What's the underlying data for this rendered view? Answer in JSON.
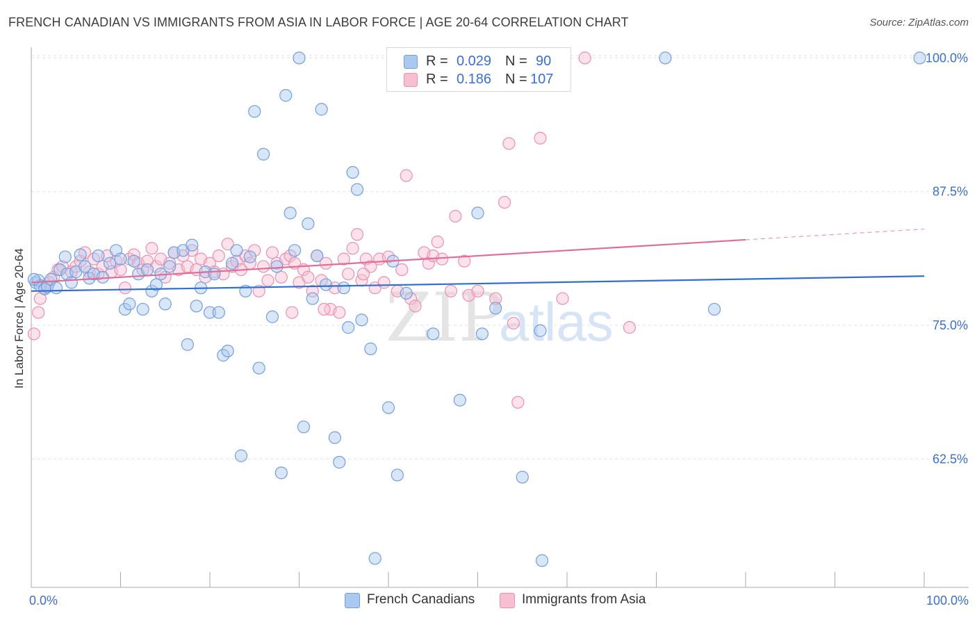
{
  "title": "FRENCH CANADIAN VS IMMIGRANTS FROM ASIA IN LABOR FORCE | AGE 20-64 CORRELATION CHART",
  "source": "Source: ZipAtlas.com",
  "watermark": {
    "zip": "ZIP",
    "atlas": "atlas"
  },
  "legend": {
    "rows": [
      {
        "r_label": "R = ",
        "r_value": "0.029",
        "n_label": "N = ",
        "n_value": "90",
        "color": "#aac8f0",
        "stroke": "#6f9fe0"
      },
      {
        "r_label": "R = ",
        "r_value": "0.186",
        "n_label": "N = ",
        "n_value": "107",
        "color": "#f8bfd2",
        "stroke": "#ec8fae"
      }
    ]
  },
  "chart_data": {
    "type": "scatter",
    "title": "FRENCH CANADIAN VS IMMIGRANTS FROM ASIA IN LABOR FORCE | AGE 20-64 CORRELATION CHART",
    "xlabel": "",
    "ylabel": "In Labor Force | Age 20-64",
    "xlim": [
      0,
      100
    ],
    "ylim": [
      50.5,
      101
    ],
    "x_tick_labels": [
      "0.0%",
      "100.0%"
    ],
    "y_ticks": [
      62.5,
      75.0,
      87.5,
      100.0
    ],
    "y_tick_labels": [
      "62.5%",
      "75.0%",
      "87.5%",
      "100.0%"
    ],
    "grid": true,
    "colors": {
      "blue": "#6f9fe0",
      "blue_fill": "#aac8f0",
      "blue_line": "#2f6fcf",
      "pink": "#ec8fae",
      "pink_fill": "#f8bfd2",
      "pink_line": "#e36c97",
      "tick_text": "#3a6fcc"
    },
    "series": [
      {
        "name": "French Canadians",
        "trend": {
          "x": [
            0,
            100
          ],
          "y": [
            78.2,
            79.6
          ]
        },
        "points": [
          [
            0.5,
            79.0
          ],
          [
            0.8,
            79.2
          ],
          [
            1.0,
            78.7
          ],
          [
            1.5,
            78.4
          ],
          [
            1.8,
            78.6
          ],
          [
            2.2,
            79.3
          ],
          [
            2.8,
            78.5
          ],
          [
            3.2,
            80.2
          ],
          [
            3.8,
            81.4
          ],
          [
            4.0,
            79.8
          ],
          [
            4.5,
            79.0
          ],
          [
            5.0,
            80.0
          ],
          [
            5.5,
            81.6
          ],
          [
            6.0,
            80.5
          ],
          [
            6.5,
            79.4
          ],
          [
            7.0,
            79.8
          ],
          [
            7.5,
            81.5
          ],
          [
            8.0,
            79.5
          ],
          [
            8.8,
            80.8
          ],
          [
            9.5,
            82.0
          ],
          [
            10.0,
            81.2
          ],
          [
            10.5,
            76.5
          ],
          [
            11.0,
            77.0
          ],
          [
            11.5,
            81.0
          ],
          [
            12.0,
            79.8
          ],
          [
            12.5,
            76.5
          ],
          [
            13.0,
            80.2
          ],
          [
            13.5,
            78.2
          ],
          [
            14.0,
            78.8
          ],
          [
            14.5,
            79.8
          ],
          [
            15.0,
            77.0
          ],
          [
            15.5,
            80.5
          ],
          [
            16.0,
            81.8
          ],
          [
            17.0,
            82.0
          ],
          [
            17.5,
            73.2
          ],
          [
            18.0,
            82.5
          ],
          [
            18.5,
            76.8
          ],
          [
            19.0,
            78.5
          ],
          [
            19.5,
            80.0
          ],
          [
            20.0,
            76.2
          ],
          [
            20.5,
            79.8
          ],
          [
            21.0,
            76.2
          ],
          [
            21.5,
            72.2
          ],
          [
            22.0,
            72.6
          ],
          [
            22.5,
            80.8
          ],
          [
            23.0,
            82.0
          ],
          [
            23.5,
            62.8
          ],
          [
            24.0,
            78.2
          ],
          [
            24.5,
            81.4
          ],
          [
            25.0,
            95.0
          ],
          [
            25.5,
            71.0
          ],
          [
            26.0,
            91.0
          ],
          [
            27.0,
            75.8
          ],
          [
            27.5,
            80.5
          ],
          [
            28.0,
            61.2
          ],
          [
            28.5,
            96.5
          ],
          [
            29.0,
            85.5
          ],
          [
            29.5,
            82.0
          ],
          [
            30.0,
            100.0
          ],
          [
            30.5,
            65.5
          ],
          [
            31.0,
            84.5
          ],
          [
            31.5,
            77.5
          ],
          [
            32.0,
            81.5
          ],
          [
            32.5,
            95.2
          ],
          [
            33.0,
            78.8
          ],
          [
            34.0,
            64.5
          ],
          [
            34.5,
            62.2
          ],
          [
            35.0,
            78.5
          ],
          [
            35.5,
            74.8
          ],
          [
            36.0,
            89.3
          ],
          [
            36.5,
            87.7
          ],
          [
            37.0,
            75.5
          ],
          [
            38.0,
            72.8
          ],
          [
            38.5,
            53.2
          ],
          [
            40.0,
            67.3
          ],
          [
            41.0,
            61.0
          ],
          [
            42.0,
            78.0
          ],
          [
            45.0,
            74.2
          ],
          [
            48.0,
            68.0
          ],
          [
            50.0,
            85.5
          ],
          [
            50.5,
            74.2
          ],
          [
            52.0,
            76.6
          ],
          [
            55.0,
            60.8
          ],
          [
            57.0,
            74.5
          ],
          [
            57.2,
            53.0
          ],
          [
            71.0,
            100.0
          ],
          [
            76.5,
            76.5
          ],
          [
            99.5,
            100.0
          ],
          [
            0.3,
            79.3
          ],
          [
            40.5,
            81.0
          ]
        ]
      },
      {
        "name": "Immigrants from Asia",
        "trend": {
          "x": [
            0,
            80
          ],
          "y": [
            79.0,
            83.0
          ],
          "dashed_x": [
            80,
            100
          ],
          "dashed_y": [
            83.0,
            84.0
          ]
        },
        "points": [
          [
            0.3,
            74.2
          ],
          [
            0.8,
            76.2
          ],
          [
            1.0,
            77.5
          ],
          [
            1.5,
            78.5
          ],
          [
            2.0,
            79.0
          ],
          [
            2.5,
            79.5
          ],
          [
            3.0,
            80.2
          ],
          [
            3.5,
            80.5
          ],
          [
            4.5,
            80.0
          ],
          [
            5.0,
            80.5
          ],
          [
            5.5,
            81.0
          ],
          [
            6.0,
            81.8
          ],
          [
            6.5,
            80.0
          ],
          [
            7.0,
            81.2
          ],
          [
            7.5,
            79.8
          ],
          [
            8.0,
            80.5
          ],
          [
            8.5,
            81.5
          ],
          [
            9.0,
            80.0
          ],
          [
            9.5,
            81.0
          ],
          [
            10.0,
            80.2
          ],
          [
            10.5,
            78.5
          ],
          [
            11.0,
            81.2
          ],
          [
            11.5,
            81.6
          ],
          [
            12.0,
            80.8
          ],
          [
            12.5,
            80.2
          ],
          [
            13.0,
            81.0
          ],
          [
            13.5,
            82.2
          ],
          [
            14.0,
            80.5
          ],
          [
            14.5,
            81.2
          ],
          [
            15.0,
            79.5
          ],
          [
            15.5,
            80.8
          ],
          [
            16.0,
            81.8
          ],
          [
            16.5,
            80.2
          ],
          [
            17.0,
            81.5
          ],
          [
            17.5,
            80.5
          ],
          [
            18.0,
            82.0
          ],
          [
            18.5,
            80.2
          ],
          [
            19.0,
            81.2
          ],
          [
            19.5,
            79.5
          ],
          [
            20.0,
            80.8
          ],
          [
            20.5,
            80.0
          ],
          [
            21.0,
            81.5
          ],
          [
            21.5,
            79.8
          ],
          [
            22.0,
            82.6
          ],
          [
            22.5,
            80.5
          ],
          [
            23.0,
            81.0
          ],
          [
            23.5,
            80.2
          ],
          [
            24.0,
            81.5
          ],
          [
            24.5,
            80.8
          ],
          [
            25.0,
            82.0
          ],
          [
            25.5,
            78.2
          ],
          [
            26.0,
            80.5
          ],
          [
            26.5,
            79.2
          ],
          [
            27.0,
            81.8
          ],
          [
            27.5,
            80.8
          ],
          [
            28.0,
            79.5
          ],
          [
            28.5,
            81.2
          ],
          [
            29.0,
            81.5
          ],
          [
            29.5,
            80.8
          ],
          [
            30.0,
            79.0
          ],
          [
            30.5,
            80.2
          ],
          [
            31.0,
            79.5
          ],
          [
            31.5,
            78.2
          ],
          [
            32.0,
            81.5
          ],
          [
            32.5,
            79.2
          ],
          [
            33.0,
            80.8
          ],
          [
            33.5,
            76.5
          ],
          [
            34.0,
            78.5
          ],
          [
            34.5,
            76.2
          ],
          [
            35.0,
            81.2
          ],
          [
            35.5,
            79.8
          ],
          [
            36.0,
            82.2
          ],
          [
            36.5,
            83.5
          ],
          [
            37.0,
            79.2
          ],
          [
            37.5,
            81.2
          ],
          [
            38.0,
            80.5
          ],
          [
            38.5,
            78.5
          ],
          [
            39.0,
            81.2
          ],
          [
            39.5,
            79.0
          ],
          [
            40.0,
            81.4
          ],
          [
            41.0,
            78.2
          ],
          [
            41.5,
            80.2
          ],
          [
            42.0,
            89.0
          ],
          [
            42.5,
            77.5
          ],
          [
            43.0,
            76.8
          ],
          [
            44.0,
            81.8
          ],
          [
            44.5,
            80.8
          ],
          [
            45.0,
            81.5
          ],
          [
            45.5,
            82.8
          ],
          [
            46.0,
            81.2
          ],
          [
            47.0,
            78.2
          ],
          [
            47.5,
            85.2
          ],
          [
            49.0,
            77.8
          ],
          [
            50.0,
            78.2
          ],
          [
            52.0,
            77.5
          ],
          [
            53.0,
            86.5
          ],
          [
            53.5,
            92.0
          ],
          [
            54.0,
            75.2
          ],
          [
            54.5,
            67.8
          ],
          [
            57.0,
            92.5
          ],
          [
            59.5,
            77.5
          ],
          [
            62.0,
            100.0
          ],
          [
            67.0,
            74.8
          ],
          [
            37.2,
            79.8
          ],
          [
            29.2,
            76.2
          ],
          [
            32.8,
            76.5
          ],
          [
            48.5,
            81.0
          ]
        ]
      }
    ]
  },
  "bottom_legend": [
    {
      "label": "French Canadians",
      "color": "#aac8f0",
      "stroke": "#6f9fe0"
    },
    {
      "label": "Immigrants from Asia",
      "color": "#f8bfd2",
      "stroke": "#ec8fae"
    }
  ]
}
